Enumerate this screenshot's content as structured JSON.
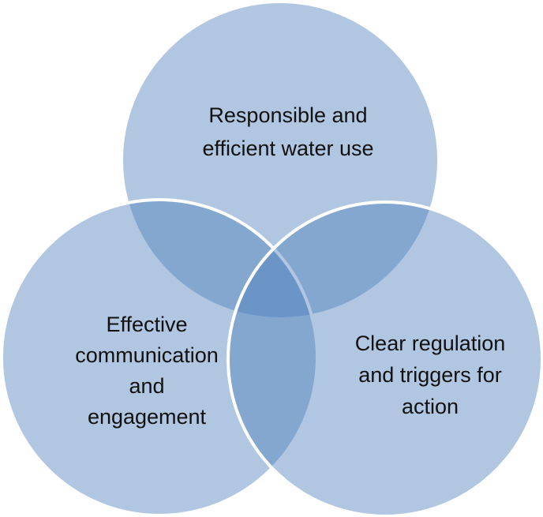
{
  "nodes": [
    {
      "lines": [
        "Responsible and",
        "efficient water use"
      ]
    },
    {
      "lines": [
        "Effective",
        "communication",
        "and",
        "engagement"
      ]
    },
    {
      "lines": [
        "Clear regulation",
        "and triggers for",
        "action"
      ]
    }
  ]
}
